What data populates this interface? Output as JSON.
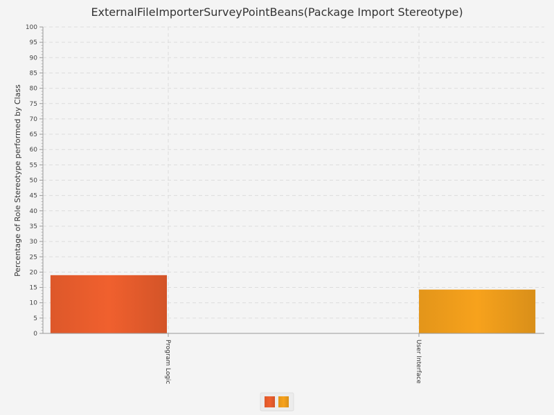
{
  "chart_data": {
    "type": "bar",
    "title": "ExternalFileImporterSurveyPointBeans(Package Import Stereotype)",
    "xlabel": "",
    "ylabel": "Percentage of Role Stereotype performed by Class",
    "ylim": [
      0,
      100
    ],
    "ytick_step": 5,
    "grid": true,
    "legend": "bottom-center",
    "categories": [
      "Program Logic",
      "User Interface"
    ],
    "series": [
      {
        "color": "#f0602e",
        "values": [
          19,
          null
        ]
      },
      {
        "color": "#f7a21c",
        "values": [
          null,
          14.3
        ]
      }
    ]
  }
}
